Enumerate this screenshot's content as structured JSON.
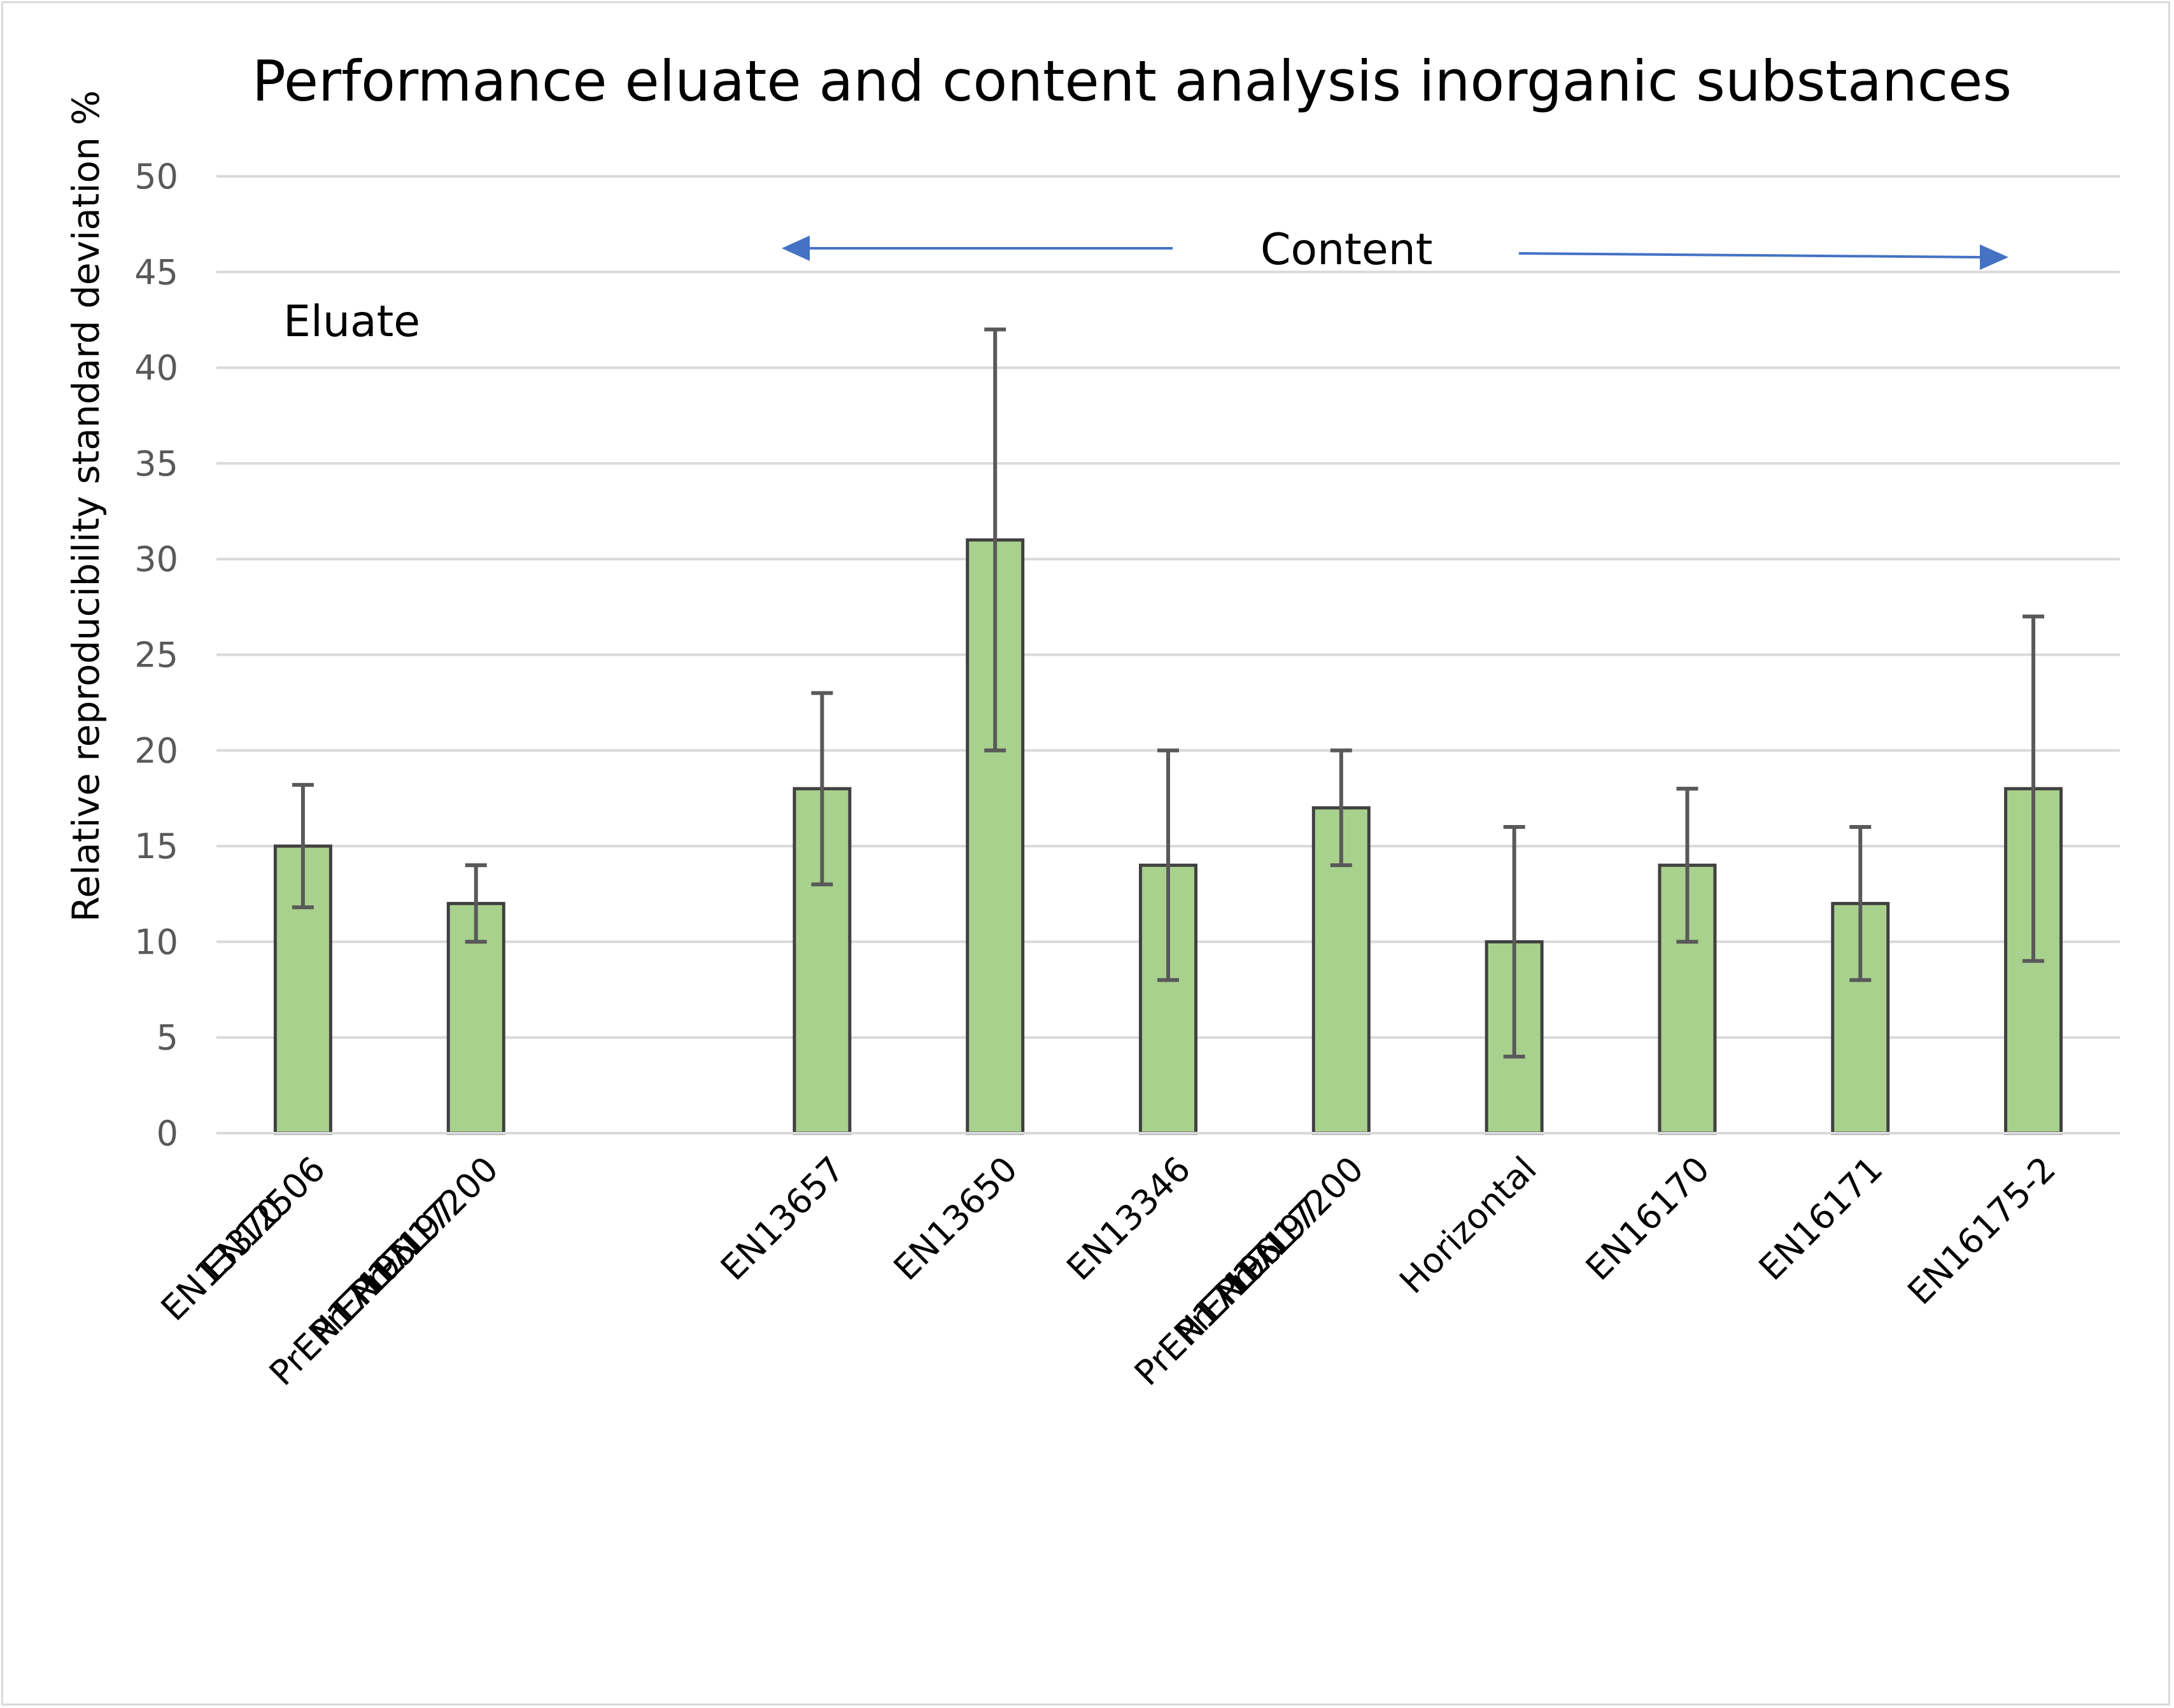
{
  "chart_data": {
    "type": "bar",
    "title": "Performance eluate and content analysis inorganic substances",
    "xlabel": "",
    "ylabel": "Relative reproducibility standard deviation %",
    "ylim": [
      0,
      50
    ],
    "yticks": [
      0,
      5,
      10,
      15,
      20,
      25,
      30,
      35,
      40,
      45,
      50
    ],
    "grid": true,
    "legend": "none",
    "bar_color": "#a9d18e",
    "bar_edge_color": "#404040",
    "error_bar_color": "#595959",
    "arrow_color": "#4472c4",
    "categories": [
      [
        "EN13370",
        "EN12506"
      ],
      [
        "PrEN17195",
        "PrEN17197",
        "PrEN17200"
      ],
      [
        ""
      ],
      [
        "EN13657"
      ],
      [
        "EN13650"
      ],
      [
        "EN13346"
      ],
      [
        "PrEN17196",
        "PrEN17197",
        "PrEN17200"
      ],
      [
        "Horizontal"
      ],
      [
        "EN16170"
      ],
      [
        "EN16171"
      ],
      [
        "EN16175-2"
      ]
    ],
    "values": [
      15,
      12,
      null,
      18,
      31,
      14,
      17,
      10,
      14,
      12,
      18
    ],
    "error_low": [
      11.8,
      10,
      null,
      13,
      20,
      8,
      14,
      4,
      10,
      8,
      9
    ],
    "error_high": [
      18.2,
      14,
      null,
      23,
      42,
      20,
      20,
      16,
      18,
      16,
      27
    ],
    "annotations": [
      {
        "text": "Eluate"
      },
      {
        "text": "Content"
      }
    ]
  }
}
